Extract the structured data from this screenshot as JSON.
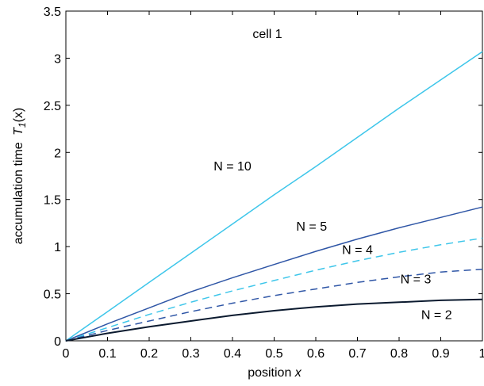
{
  "chart_data": {
    "type": "line",
    "title": "",
    "annotation": "cell 1",
    "xlabel": {
      "text": "position",
      "var": "x"
    },
    "ylabel": {
      "text": "accumulation time",
      "var": "T",
      "sub": "1",
      "arg": "(x)"
    },
    "xlim": [
      0,
      1
    ],
    "ylim": [
      0,
      3.5
    ],
    "xticks": [
      "0",
      "0.1",
      "0.2",
      "0.3",
      "0.4",
      "0.5",
      "0.6",
      "0.7",
      "0.8",
      "0.9",
      "1"
    ],
    "yticks": [
      "0",
      "0.5",
      "1",
      "1.5",
      "2",
      "2.5",
      "3",
      "3.5"
    ],
    "grid": false,
    "legend": "none",
    "x": [
      0,
      0.1,
      0.2,
      0.3,
      0.4,
      0.5,
      0.6,
      0.7,
      0.8,
      0.9,
      1.0
    ],
    "series": [
      {
        "name": "N = 10",
        "color": "#3ec6ea",
        "dash": false,
        "width": 1.5,
        "values": [
          0,
          0.31,
          0.62,
          0.93,
          1.24,
          1.55,
          1.85,
          2.16,
          2.47,
          2.77,
          3.07
        ],
        "label_x": 0.4,
        "label_y": 1.81
      },
      {
        "name": "N = 5",
        "color": "#2f56a6",
        "dash": false,
        "width": 1.5,
        "values": [
          0,
          0.18,
          0.35,
          0.52,
          0.67,
          0.81,
          0.95,
          1.08,
          1.2,
          1.31,
          1.42
        ],
        "label_x": 0.59,
        "label_y": 1.17
      },
      {
        "name": "N = 4",
        "color": "#3ec6ea",
        "dash": true,
        "width": 1.5,
        "values": [
          0,
          0.14,
          0.28,
          0.41,
          0.53,
          0.64,
          0.75,
          0.85,
          0.94,
          1.02,
          1.09
        ],
        "label_x": 0.7,
        "label_y": 0.92
      },
      {
        "name": "N = 3",
        "color": "#2f56a6",
        "dash": true,
        "width": 1.5,
        "values": [
          0,
          0.11,
          0.21,
          0.31,
          0.4,
          0.48,
          0.55,
          0.62,
          0.68,
          0.73,
          0.76
        ],
        "label_x": 0.84,
        "label_y": 0.61
      },
      {
        "name": "N = 2",
        "color": "#0b1a2f",
        "dash": false,
        "width": 2,
        "values": [
          0,
          0.08,
          0.15,
          0.21,
          0.27,
          0.32,
          0.36,
          0.39,
          0.41,
          0.43,
          0.44
        ],
        "label_x": 0.89,
        "label_y": 0.23
      }
    ]
  }
}
